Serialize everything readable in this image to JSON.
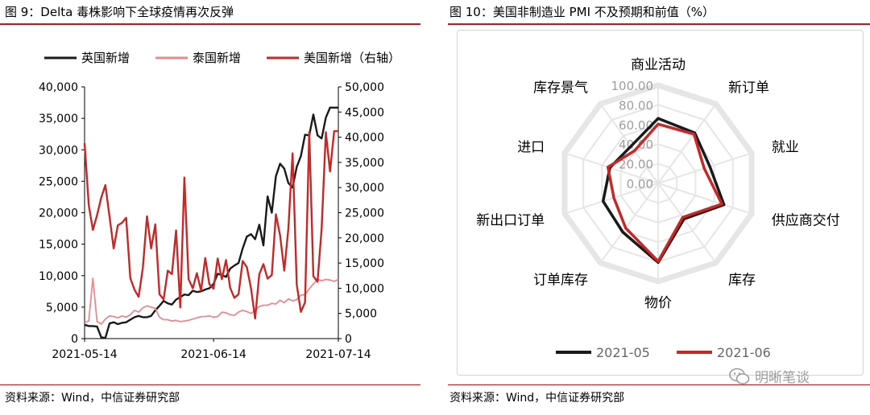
{
  "left_panel": {
    "title": "图 9：Delta 毒株影响下全球疫情再次反弹",
    "source": "资料来源：Wind，中信证券研究部"
  },
  "right_panel": {
    "title": "图 10：美国非制造业 PMI 不及预期和前值（%）",
    "source": "资料来源：Wind，中信证券研究部"
  },
  "watermark": {
    "text": "明晰笔谈",
    "icon": "wechat-icon"
  },
  "colors": {
    "accent": "#b71c1c",
    "black_series": "#1a1a1a",
    "pink_series": "#e88a90",
    "red_series": "#c62828",
    "grid": "#e6e6e6"
  },
  "chart_data": [
    {
      "type": "line",
      "title": "Delta 毒株影响下全球疫情再次反弹",
      "x_tick_labels": [
        "2021-05-14",
        "2021-06-14",
        "2021-07-14"
      ],
      "x_length": 62,
      "left_axis": {
        "ylim": [
          0,
          40000
        ],
        "ticks": [
          "0",
          "5,000",
          "10,000",
          "15,000",
          "20,000",
          "25,000",
          "30,000",
          "35,000",
          "40,000"
        ]
      },
      "right_axis": {
        "ylim": [
          0,
          50000
        ],
        "ticks": [
          "0",
          "5,000",
          "10,000",
          "15,000",
          "20,000",
          "25,000",
          "30,000",
          "35,000",
          "40,000",
          "45,000",
          "50,000"
        ]
      },
      "legend_position": "top",
      "series": [
        {
          "name": "英国新增",
          "axis": "left",
          "values": [
            2200,
            2000,
            2000,
            1900,
            200,
            100,
            2400,
            2600,
            2300,
            2500,
            2600,
            3000,
            3400,
            3600,
            3400,
            3400,
            3600,
            4500,
            5200,
            6000,
            5600,
            5400,
            6200,
            6600,
            7000,
            6900,
            7600,
            7400,
            7500,
            7800,
            8000,
            8700,
            10300,
            10100,
            9800,
            11100,
            11600,
            12000,
            14300,
            16200,
            16600,
            15800,
            18100,
            14800,
            22600,
            20000,
            25800,
            27800,
            27000,
            24700,
            24000,
            27300,
            29000,
            32400,
            32300,
            35600,
            32300,
            31800,
            35100,
            36700,
            36700,
            36700
          ]
        },
        {
          "name": "泰国新增",
          "axis": "left",
          "values": [
            2600,
            2800,
            9600,
            2700,
            2300,
            3100,
            3600,
            3500,
            3300,
            3600,
            3400,
            3800,
            4500,
            4200,
            4900,
            5200,
            5000,
            4800,
            3400,
            3000,
            3000,
            2800,
            2900,
            2700,
            2800,
            2900,
            3100,
            3300,
            3500,
            3500,
            3600,
            3400,
            3500,
            4200,
            4100,
            3800,
            3700,
            4200,
            4500,
            4300,
            4000,
            4500,
            5100,
            5300,
            5300,
            5600,
            5500,
            6100,
            5700,
            6300,
            6000,
            6200,
            6900,
            7000,
            7900,
            8700,
            9400,
            9200,
            9400,
            9300,
            9100,
            9400
          ]
        },
        {
          "name": "美国新增（右轴）",
          "axis": "right",
          "values": [
            38800,
            26500,
            21600,
            24500,
            28000,
            30500,
            24200,
            17900,
            22500,
            23000,
            24000,
            12000,
            9700,
            8300,
            14000,
            24300,
            17900,
            22700,
            8800,
            7800,
            13500,
            12800,
            21500,
            6200,
            32000,
            11800,
            10000,
            13000,
            9500,
            16000,
            10800,
            9900,
            15900,
            11800,
            15600,
            10100,
            8100,
            8800,
            15400,
            14200,
            10000,
            4000,
            12800,
            14800,
            11900,
            12600,
            24700,
            20500,
            13500,
            21900,
            36800,
            10700,
            5300,
            7200,
            41000,
            12400,
            11300,
            21900,
            41000,
            33200,
            41200,
            41200
          ]
        }
      ]
    },
    {
      "type": "radar",
      "title": "美国非制造业 PMI 不及预期和前值（%）",
      "axes": [
        "商业活动",
        "新订单",
        "就业",
        "供应商交付",
        "库存",
        "物价",
        "订单库存",
        "新出口订单",
        "进口",
        "库存景气"
      ],
      "rlim": [
        0,
        100
      ],
      "r_tick_labels": [
        "0.00",
        "20.00",
        "40.00",
        "60.00",
        "80.00",
        "100.00"
      ],
      "legend_position": "bottom",
      "series": [
        {
          "name": "2021-05",
          "values": [
            66.2,
            63.5,
            55.3,
            70.4,
            44.8,
            80.6,
            61.3,
            58.9,
            51.6,
            46.9
          ]
        },
        {
          "name": "2021-06",
          "values": [
            60.4,
            62.1,
            49.3,
            68.2,
            42.7,
            79.5,
            56.2,
            47.4,
            53.7,
            41.0
          ]
        }
      ]
    }
  ]
}
